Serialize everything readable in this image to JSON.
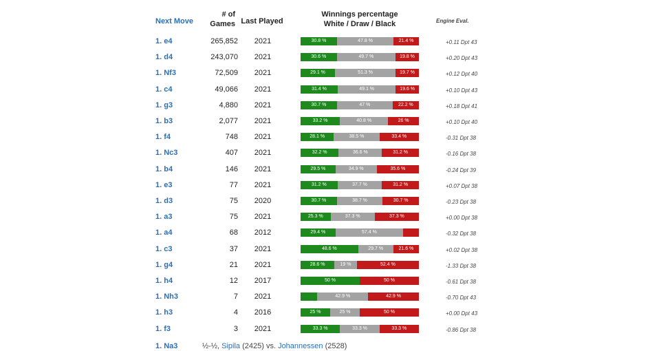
{
  "headers": {
    "move": "Next Move",
    "games_line1": "# of",
    "games_line2": "Games",
    "last_played": "Last Played",
    "win_line1": "Winnings percentage",
    "win_line2": "White / Draw / Black",
    "eval": "Engine Eval."
  },
  "rows": [
    {
      "move": "1. e4",
      "games": "265,852",
      "year": "2021",
      "white": 30.8,
      "draw": 47.8,
      "black": 21.4,
      "wl": "30.8 %",
      "dl": "47.8 %",
      "bl": "21.4 %",
      "eval": "+0.11 Dpt 43"
    },
    {
      "move": "1. d4",
      "games": "243,070",
      "year": "2021",
      "white": 30.6,
      "draw": 49.7,
      "black": 19.8,
      "wl": "30.6 %",
      "dl": "49.7 %",
      "bl": "19.8 %",
      "eval": "+0.20 Dpt 43"
    },
    {
      "move": "1. Nf3",
      "games": "72,509",
      "year": "2021",
      "white": 29.1,
      "draw": 51.3,
      "black": 19.7,
      "wl": "29.1 %",
      "dl": "51.3 %",
      "bl": "19.7 %",
      "eval": "+0.12 Dpt 40"
    },
    {
      "move": "1. c4",
      "games": "49,066",
      "year": "2021",
      "white": 31.4,
      "draw": 49.1,
      "black": 19.6,
      "wl": "31.4 %",
      "dl": "49.1 %",
      "bl": "19.6 %",
      "eval": "+0.10 Dpt 43"
    },
    {
      "move": "1. g3",
      "games": "4,880",
      "year": "2021",
      "white": 30.7,
      "draw": 47,
      "black": 22.2,
      "wl": "30.7 %",
      "dl": "47 %",
      "bl": "22.2 %",
      "eval": "+0.18 Dpt 41"
    },
    {
      "move": "1. b3",
      "games": "2,077",
      "year": "2021",
      "white": 33.2,
      "draw": 40.8,
      "black": 26,
      "wl": "33.2 %",
      "dl": "40.8 %",
      "bl": "26 %",
      "eval": "+0.10 Dpt 40"
    },
    {
      "move": "1. f4",
      "games": "748",
      "year": "2021",
      "white": 28.1,
      "draw": 38.5,
      "black": 33.4,
      "wl": "28.1 %",
      "dl": "38.5 %",
      "bl": "33.4 %",
      "eval": "-0.31 Dpt 38"
    },
    {
      "move": "1. Nc3",
      "games": "407",
      "year": "2021",
      "white": 32.2,
      "draw": 36.6,
      "black": 31.2,
      "wl": "32.2 %",
      "dl": "36.6 %",
      "bl": "31.2 %",
      "eval": "-0.16 Dpt 38"
    },
    {
      "move": "1. b4",
      "games": "146",
      "year": "2021",
      "white": 29.5,
      "draw": 34.9,
      "black": 35.6,
      "wl": "29.5 %",
      "dl": "34.9 %",
      "bl": "35.6 %",
      "eval": "-0.24 Dpt 39"
    },
    {
      "move": "1. e3",
      "games": "77",
      "year": "2021",
      "white": 31.2,
      "draw": 37.7,
      "black": 31.2,
      "wl": "31.2 %",
      "dl": "37.7 %",
      "bl": "31.2 %",
      "eval": "+0.07 Dpt 38"
    },
    {
      "move": "1. d3",
      "games": "75",
      "year": "2020",
      "white": 30.7,
      "draw": 38.7,
      "black": 30.7,
      "wl": "30.7 %",
      "dl": "38.7 %",
      "bl": "30.7 %",
      "eval": "-0.23 Dpt 38"
    },
    {
      "move": "1. a3",
      "games": "75",
      "year": "2021",
      "white": 25.3,
      "draw": 37.3,
      "black": 37.3,
      "wl": "25.3 %",
      "dl": "37.3 %",
      "bl": "37.3 %",
      "eval": "+0.00 Dpt 38"
    },
    {
      "move": "1. a4",
      "games": "68",
      "year": "2012",
      "white": 29.4,
      "draw": 57.4,
      "black": 13.2,
      "wl": "29.4 %",
      "dl": "57.4 %",
      "bl": "",
      "eval": "-0.32 Dpt 38"
    },
    {
      "move": "1. c3",
      "games": "37",
      "year": "2021",
      "white": 48.6,
      "draw": 29.7,
      "black": 21.6,
      "wl": "48.6 %",
      "dl": "29.7 %",
      "bl": "21.6 %",
      "eval": "+0.02 Dpt 38"
    },
    {
      "move": "1. g4",
      "games": "21",
      "year": "2021",
      "white": 28.6,
      "draw": 19,
      "black": 52.4,
      "wl": "28.6 %",
      "dl": "19 %",
      "bl": "52.4 %",
      "eval": "-1.33 Dpt 38"
    },
    {
      "move": "1. h4",
      "games": "12",
      "year": "2017",
      "white": 50,
      "draw": 0,
      "black": 50,
      "wl": "50 %",
      "dl": "",
      "bl": "50 %",
      "eval": "-0.61 Dpt 38"
    },
    {
      "move": "1. Nh3",
      "games": "7",
      "year": "2021",
      "white": 14.2,
      "draw": 42.9,
      "black": 42.9,
      "wl": "",
      "dl": "42.9 %",
      "bl": "42.9 %",
      "eval": "-0.70 Dpt 43"
    },
    {
      "move": "1. h3",
      "games": "4",
      "year": "2016",
      "white": 25,
      "draw": 25,
      "black": 50,
      "wl": "25 %",
      "dl": "25 %",
      "bl": "50 %",
      "eval": "+0.00 Dpt 43"
    },
    {
      "move": "1. f3",
      "games": "3",
      "year": "2021",
      "white": 33.3,
      "draw": 33.3,
      "black": 33.3,
      "wl": "33.3 %",
      "dl": "33.3 %",
      "bl": "33.3 %",
      "eval": "-0.86 Dpt 38"
    }
  ],
  "footer": {
    "move": "1. Na3",
    "result": "½-½, ",
    "white_player": "Sipila",
    "white_rating": " (2425) vs. ",
    "black_player": "Johannessen",
    "black_rating": " (2528)"
  },
  "colors": {
    "white": "#1e8a1e",
    "draw": "#a3a3a3",
    "black": "#c21a1a",
    "link": "#2a6fb5"
  }
}
